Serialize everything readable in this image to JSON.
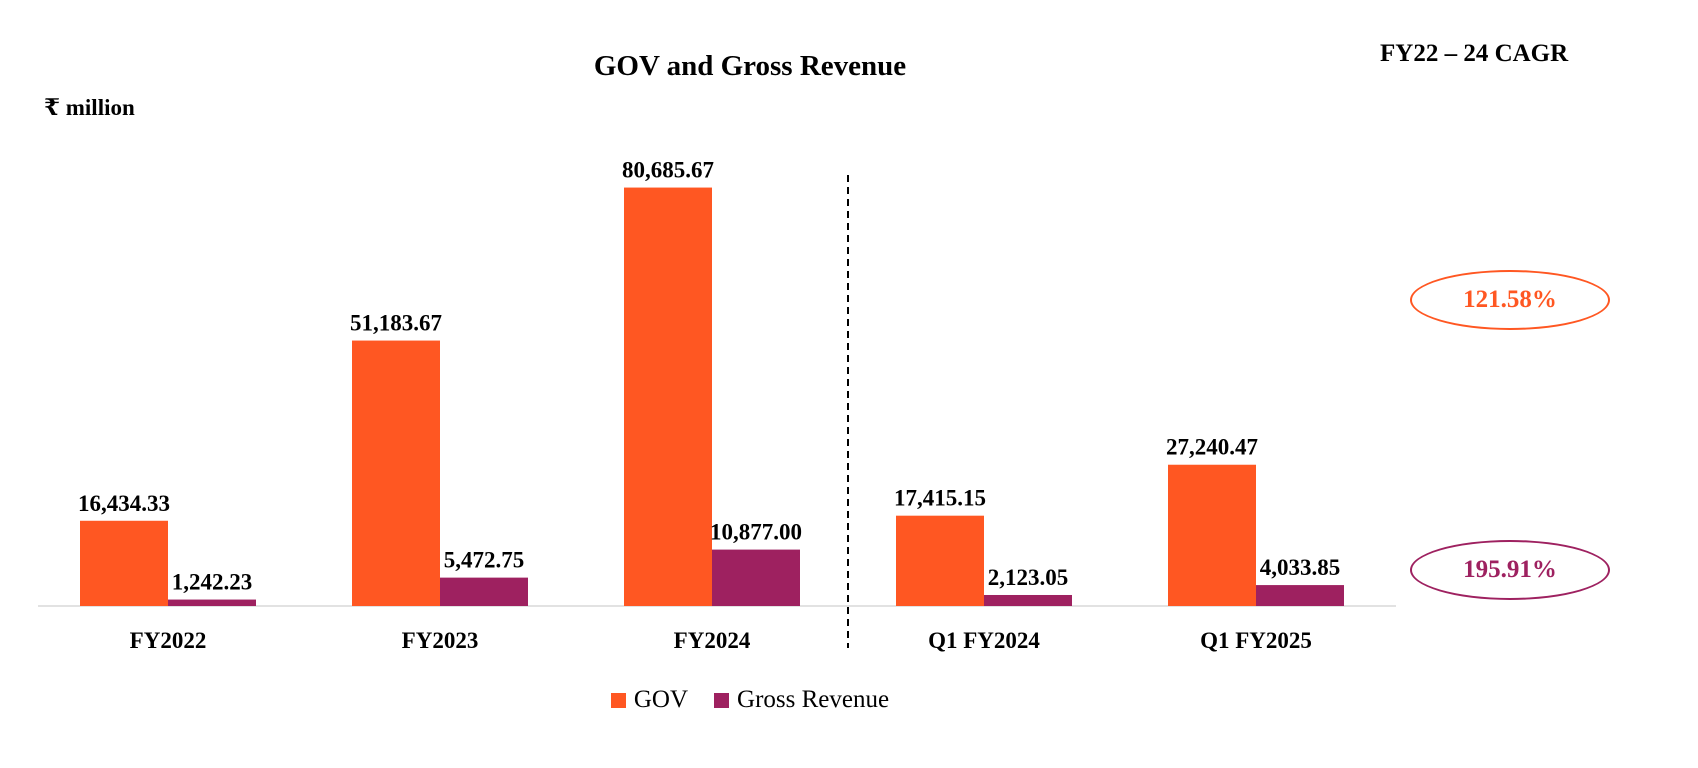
{
  "chart_data": {
    "type": "bar",
    "title": "GOV and Gross Revenue",
    "unit_label": "₹ million",
    "categories": [
      "FY2022",
      "FY2023",
      "FY2024",
      "Q1 FY2024",
      "Q1 FY2025"
    ],
    "series": [
      {
        "name": "GOV",
        "color": "#FF5722",
        "values": [
          16434.33,
          51183.67,
          80685.67,
          17415.15,
          27240.47
        ],
        "labels": [
          "16,434.33",
          "51,183.67",
          "80,685.67",
          "17,415.15",
          "27,240.47"
        ]
      },
      {
        "name": "Gross Revenue",
        "color": "#9E2160",
        "values": [
          1242.23,
          5472.75,
          10877.0,
          2123.05,
          4033.85
        ],
        "labels": [
          "1,242.23",
          "5,472.75",
          "10,877.00",
          "2,123.05",
          "4,033.85"
        ]
      }
    ],
    "ylim": [
      0,
      86000
    ],
    "separator_after_category": "FY2024",
    "grid": false,
    "legend_position": "bottom"
  },
  "cagr": {
    "heading": "FY22 – 24 CAGR",
    "gov": {
      "value": "121.58%",
      "color": "#FF5722"
    },
    "gross_revenue": {
      "value": "195.91%",
      "color": "#9E2160"
    }
  }
}
